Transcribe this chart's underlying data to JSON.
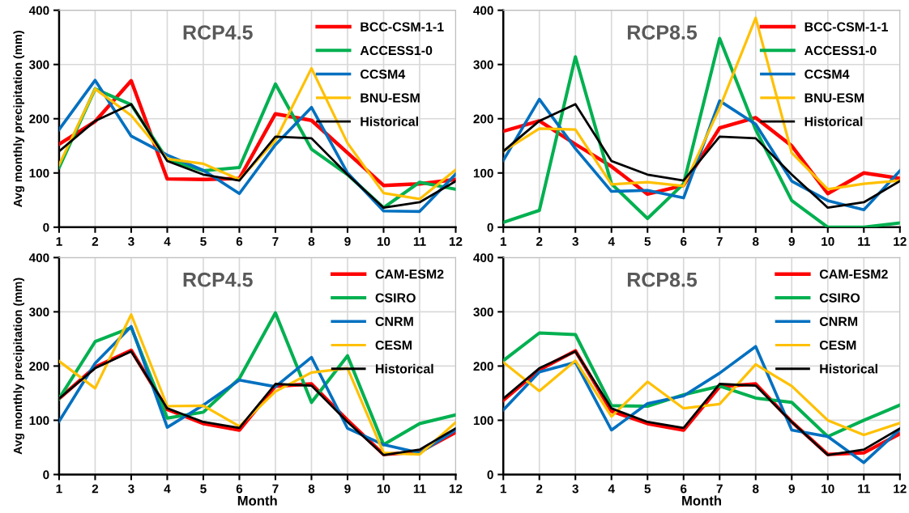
{
  "chart_data": [
    {
      "type": "line",
      "title": "RCP4.5",
      "ylabel": "Avg monthly precipitation (mm)",
      "x": [
        1,
        2,
        3,
        4,
        5,
        6,
        7,
        8,
        9,
        10,
        11,
        12
      ],
      "xlim": [
        1,
        12
      ],
      "xticks": [
        1,
        2,
        3,
        4,
        5,
        6,
        7,
        8,
        9,
        10,
        11,
        12
      ],
      "ylim": [
        0,
        400
      ],
      "yticks": [
        0,
        100,
        200,
        300,
        400
      ],
      "grid": true,
      "legend": "top right",
      "marker": "none",
      "series": [
        {
          "name": "BCC-CSM-1-1",
          "color": "#ff0000",
          "values": [
            153,
            195,
            270,
            89,
            88,
            90,
            209,
            197,
            137,
            77,
            80,
            88
          ]
        },
        {
          "name": "ACCESS1-0",
          "color": "#00b050",
          "values": [
            110,
            255,
            226,
            125,
            104,
            110,
            264,
            144,
            97,
            36,
            83,
            70
          ]
        },
        {
          "name": "CCSM4",
          "color": "#0070c0",
          "values": [
            180,
            271,
            168,
            133,
            105,
            62,
            152,
            221,
            100,
            30,
            29,
            98
          ]
        },
        {
          "name": "BNU-ESM",
          "color": "#ffc000",
          "values": [
            115,
            255,
            206,
            126,
            117,
            88,
            160,
            293,
            155,
            63,
            52,
            106
          ]
        },
        {
          "name": "Historical",
          "color": "#000000",
          "values": [
            140,
            196,
            227,
            122,
            97,
            86,
            167,
            164,
            97,
            36,
            46,
            85
          ]
        }
      ]
    },
    {
      "type": "line",
      "title": "RCP8.5",
      "x": [
        1,
        2,
        3,
        4,
        5,
        6,
        7,
        8,
        9,
        10,
        11,
        12
      ],
      "xlim": [
        1,
        12
      ],
      "xticks": [
        1,
        2,
        3,
        4,
        5,
        6,
        7,
        8,
        9,
        10,
        11,
        12
      ],
      "ylim": [
        0,
        400
      ],
      "yticks": [
        0,
        100,
        200,
        300,
        400
      ],
      "grid": true,
      "legend": "top right",
      "marker": "none",
      "series": [
        {
          "name": "BCC-CSM-1-1",
          "color": "#ff0000",
          "values": [
            177,
            196,
            153,
            112,
            61,
            77,
            183,
            202,
            150,
            62,
            100,
            90
          ]
        },
        {
          "name": "ACCESS1-0",
          "color": "#00b050",
          "values": [
            9,
            31,
            314,
            80,
            16,
            80,
            348,
            180,
            49,
            0,
            0,
            8
          ]
        },
        {
          "name": "CCSM4",
          "color": "#0070c0",
          "values": [
            123,
            236,
            145,
            66,
            68,
            54,
            233,
            190,
            85,
            49,
            32,
            104
          ]
        },
        {
          "name": "BNU-ESM",
          "color": "#ffc000",
          "values": [
            140,
            182,
            180,
            79,
            83,
            76,
            220,
            386,
            137,
            70,
            80,
            86
          ]
        },
        {
          "name": "Historical",
          "color": "#000000",
          "values": [
            140,
            196,
            227,
            122,
            97,
            86,
            167,
            164,
            97,
            36,
            46,
            85
          ]
        }
      ]
    },
    {
      "type": "line",
      "title": "RCP4.5",
      "ylabel": "Avg monthly precipitation (mm)",
      "xlabel": "Month",
      "x": [
        1,
        2,
        3,
        4,
        5,
        6,
        7,
        8,
        9,
        10,
        11,
        12
      ],
      "xlim": [
        1,
        12
      ],
      "xticks": [
        1,
        2,
        3,
        4,
        5,
        6,
        7,
        8,
        9,
        10,
        11,
        12
      ],
      "ylim": [
        0,
        400
      ],
      "yticks": [
        0,
        100,
        200,
        300,
        400
      ],
      "grid": true,
      "legend": "top right",
      "marker": "none",
      "series": [
        {
          "name": "CAM-ESM2",
          "color": "#ff0000",
          "values": [
            140,
            198,
            229,
            120,
            94,
            82,
            163,
            167,
            100,
            37,
            42,
            78
          ]
        },
        {
          "name": "CSIRO",
          "color": "#00b050",
          "values": [
            140,
            245,
            271,
            104,
            115,
            177,
            298,
            133,
            219,
            55,
            94,
            110
          ]
        },
        {
          "name": "CNRM",
          "color": "#0070c0",
          "values": [
            98,
            205,
            273,
            87,
            128,
            174,
            162,
            216,
            85,
            55,
            40,
            82
          ]
        },
        {
          "name": "CESM",
          "color": "#ffc000",
          "values": [
            209,
            159,
            295,
            126,
            127,
            89,
            153,
            188,
            196,
            40,
            37,
            96
          ]
        },
        {
          "name": "Historical",
          "color": "#000000",
          "values": [
            140,
            196,
            227,
            122,
            97,
            86,
            167,
            164,
            97,
            36,
            46,
            85
          ]
        }
      ]
    },
    {
      "type": "line",
      "title": "RCP8.5",
      "xlabel": "Month",
      "x": [
        1,
        2,
        3,
        4,
        5,
        6,
        7,
        8,
        9,
        10,
        11,
        12
      ],
      "xlim": [
        1,
        12
      ],
      "xticks": [
        1,
        2,
        3,
        4,
        5,
        6,
        7,
        8,
        9,
        10,
        11,
        12
      ],
      "ylim": [
        0,
        400
      ],
      "yticks": [
        0,
        100,
        200,
        300,
        400
      ],
      "grid": true,
      "legend": "top right",
      "marker": "none",
      "series": [
        {
          "name": "CAM-ESM2",
          "color": "#ff0000",
          "values": [
            137,
            193,
            228,
            117,
            94,
            82,
            162,
            167,
            97,
            37,
            40,
            75
          ]
        },
        {
          "name": "CSIRO",
          "color": "#00b050",
          "values": [
            210,
            261,
            258,
            127,
            126,
            147,
            163,
            141,
            133,
            70,
            100,
            128
          ]
        },
        {
          "name": "CNRM",
          "color": "#0070c0",
          "values": [
            119,
            189,
            207,
            82,
            131,
            145,
            187,
            236,
            82,
            70,
            22,
            83
          ]
        },
        {
          "name": "CESM",
          "color": "#ffc000",
          "values": [
            207,
            154,
            210,
            107,
            171,
            122,
            130,
            203,
            163,
            100,
            73,
            95
          ]
        },
        {
          "name": "Historical",
          "color": "#000000",
          "values": [
            140,
            196,
            227,
            122,
            97,
            86,
            167,
            164,
            97,
            36,
            46,
            85
          ]
        }
      ]
    }
  ]
}
